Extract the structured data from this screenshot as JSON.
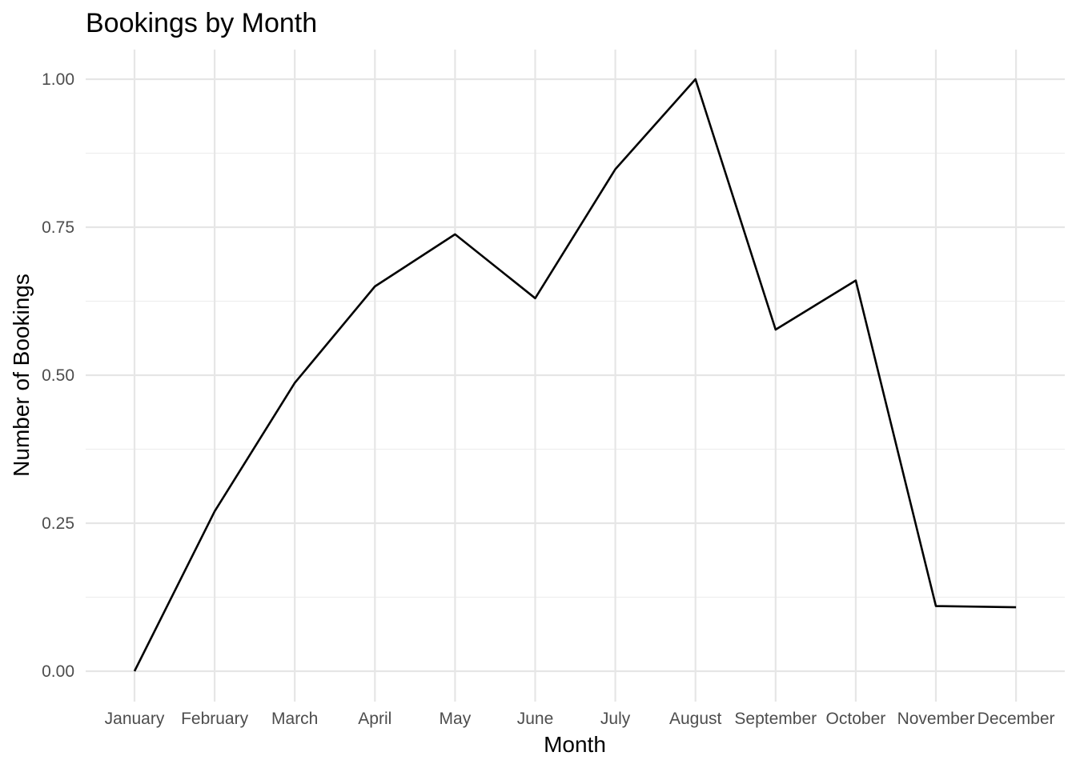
{
  "chart_data": {
    "type": "line",
    "title": "Bookings by Month",
    "xlabel": "Month",
    "ylabel": "Number of Bookings",
    "categories": [
      "January",
      "February",
      "March",
      "April",
      "May",
      "June",
      "July",
      "August",
      "September",
      "October",
      "November",
      "December"
    ],
    "series": [
      {
        "values": [
          0.0,
          0.27,
          0.487,
          0.65,
          0.738,
          0.63,
          0.848,
          1.0,
          0.577,
          0.66,
          0.11,
          0.108
        ]
      }
    ],
    "ylim": [
      -0.04,
      1.05
    ],
    "yticks": [
      0.0,
      0.25,
      0.5,
      0.75,
      1.0
    ],
    "ytick_labels": [
      "0.00",
      "0.25",
      "0.50",
      "0.75",
      "1.00"
    ],
    "grid": true,
    "legend": "none",
    "colors": {
      "line": "#000000",
      "grid": "#e6e6e6",
      "tick_text": "#4d4d4d"
    }
  }
}
